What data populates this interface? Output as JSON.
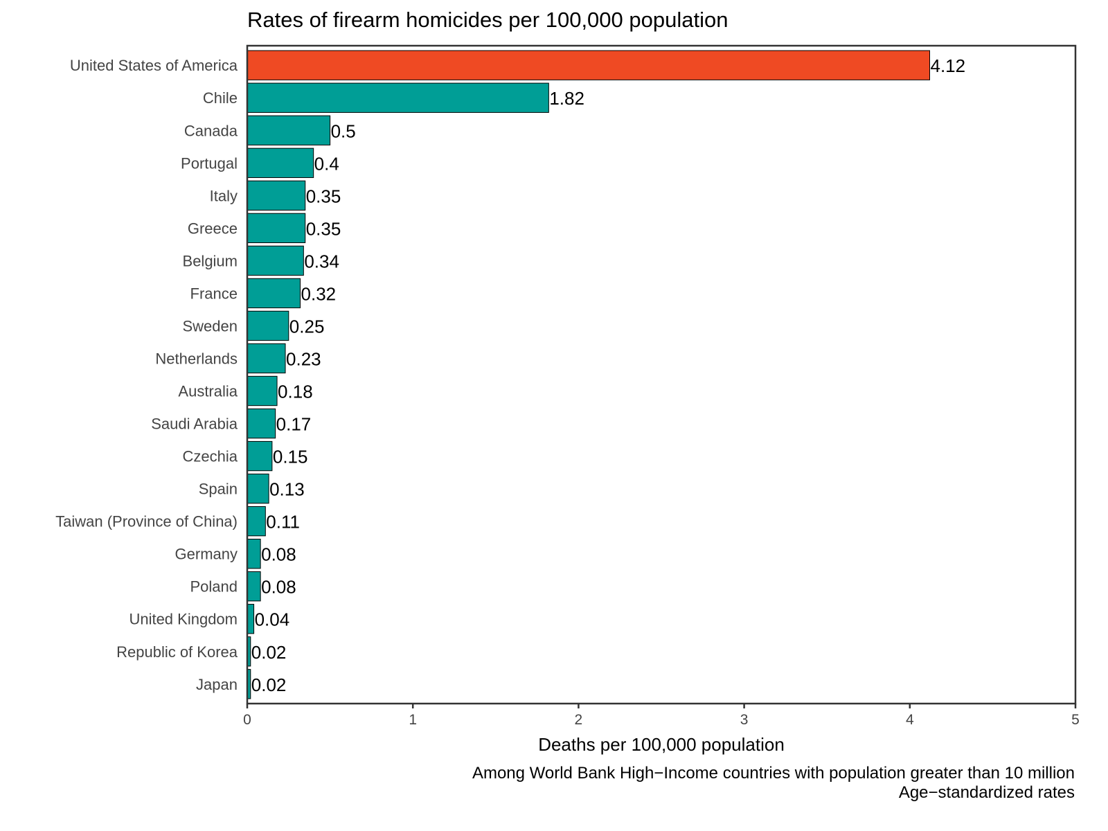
{
  "chart_data": {
    "type": "bar",
    "orientation": "horizontal",
    "title": "Rates of firearm homicides per 100,000 population",
    "xlabel": "Deaths per 100,000 population",
    "ylabel": "",
    "xlim": [
      0,
      5
    ],
    "xticks": [
      "0",
      "1",
      "2",
      "3",
      "4",
      "5"
    ],
    "grid": false,
    "categories": [
      "United States of America",
      "Chile",
      "Canada",
      "Portugal",
      "Italy",
      "Greece",
      "Belgium",
      "France",
      "Sweden",
      "Netherlands",
      "Australia",
      "Saudi Arabia",
      "Czechia",
      "Spain",
      "Taiwan (Province of China)",
      "Germany",
      "Poland",
      "United Kingdom",
      "Republic of Korea",
      "Japan"
    ],
    "values": [
      4.12,
      1.82,
      0.5,
      0.4,
      0.35,
      0.35,
      0.34,
      0.32,
      0.25,
      0.23,
      0.18,
      0.17,
      0.15,
      0.13,
      0.11,
      0.08,
      0.08,
      0.04,
      0.02,
      0.02
    ],
    "value_labels": [
      "4.12",
      "1.82",
      "0.5",
      "0.4",
      "0.35",
      "0.35",
      "0.34",
      "0.32",
      "0.25",
      "0.23",
      "0.18",
      "0.17",
      "0.15",
      "0.13",
      "0.11",
      "0.08",
      "0.08",
      "0.04",
      "0.02",
      "0.02"
    ],
    "highlight_category": "United States of America",
    "captions": [
      "Among World Bank High−Income countries with population greater than 10 million",
      "Age−standardized rates"
    ]
  },
  "colors": {
    "highlight": "#ef4a23",
    "default": "#009e96",
    "axis": "#333333"
  }
}
